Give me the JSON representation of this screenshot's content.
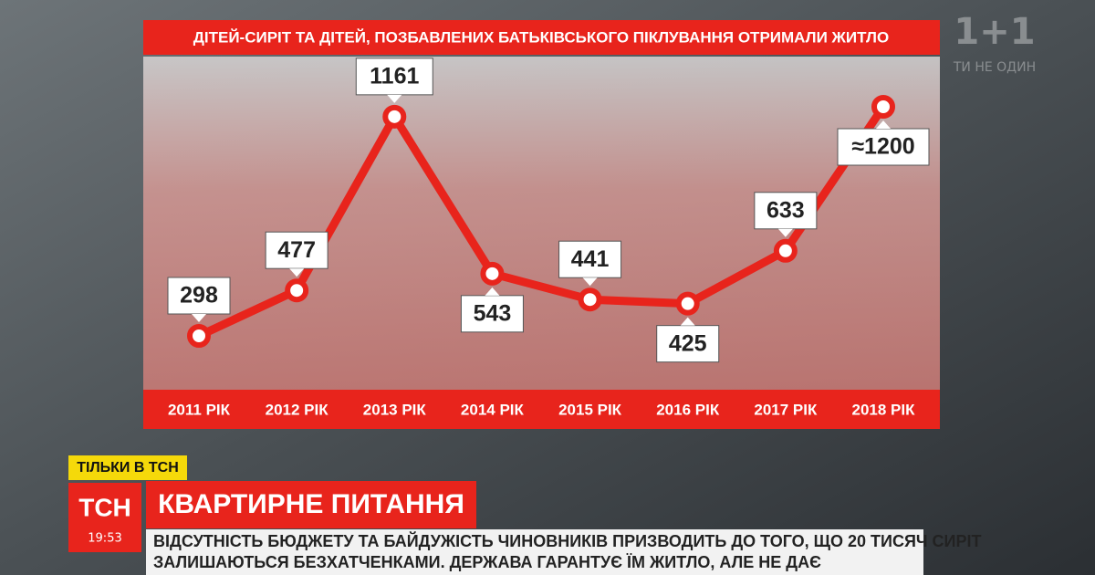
{
  "chart_data": {
    "type": "line",
    "title": "ДІТЕЙ-СИРІТ ТА ДІТЕЙ, ПОЗБАВЛЕНИХ БАТЬКІВСЬКОГО ПІКЛУВАННЯ ОТРИМАЛИ ЖИТЛО",
    "categories": [
      "2011 РІК",
      "2012 РІК",
      "2013 РІК",
      "2014 РІК",
      "2015 РІК",
      "2016 РІК",
      "2017 РІК",
      "2018 РІК"
    ],
    "values": [
      298,
      477,
      1161,
      543,
      441,
      425,
      633,
      1200
    ],
    "value_labels": [
      "298",
      "477",
      "1161",
      "543",
      "441",
      "425",
      "633",
      "≈1200"
    ],
    "color": "#e8241c"
  },
  "overlay": {
    "logo": "1+1",
    "slogan": "ТИ НЕ ОДИН",
    "badge": "ТІЛЬКИ В ТСН",
    "channel": "ТСН",
    "time": "19:53",
    "headline": "КВАРТИРНЕ ПИТАННЯ",
    "ticker": [
      "ВІДСУТНІСТЬ БЮДЖЕТУ ТА БАЙДУЖІСТЬ ЧИНОВНИКІВ ПРИЗВОДИТЬ ДО ТОГО, ЩО 20 ТИСЯЧ СИРІТ",
      "ЗАЛИШАЮТЬСЯ БЕЗХАТЧЕНКАМИ. ДЕРЖАВА ГАРАНТУЄ ЇМ ЖИТЛО, АЛЕ НЕ ДАЄ"
    ]
  }
}
